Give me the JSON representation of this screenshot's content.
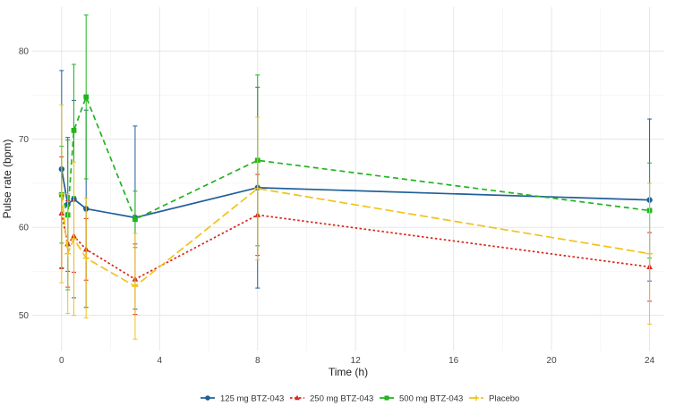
{
  "chart_data": {
    "type": "line",
    "title": "",
    "xlabel": "Time (h)",
    "ylabel": "Pulse rate (bpm)",
    "xlim": [
      -1.2,
      24.6
    ],
    "ylim": [
      46,
      85
    ],
    "xticks": [
      0,
      4,
      8,
      12,
      16,
      20,
      24
    ],
    "yticks": [
      50,
      60,
      70,
      80
    ],
    "grid": true,
    "legend_position": "bottom",
    "series": [
      {
        "name": "125 mg BTZ-043",
        "color": "#1f5f99",
        "dash": "solid",
        "marker": "circle",
        "x": [
          0,
          0.25,
          0.5,
          1,
          3,
          8,
          24
        ],
        "y": [
          66.6,
          62.6,
          63.2,
          62.1,
          61.1,
          64.5,
          63.1
        ],
        "err_low": [
          55.4,
          55.0,
          52.0,
          50.9,
          50.7,
          53.1,
          53.9
        ],
        "err_high": [
          77.8,
          70.2,
          74.4,
          73.3,
          71.5,
          75.9,
          72.3
        ]
      },
      {
        "name": "250 mg BTZ-043",
        "color": "#d62718",
        "dash": "dot",
        "marker": "triangle",
        "x": [
          0,
          0.25,
          0.5,
          1,
          3,
          8,
          24
        ],
        "y": [
          61.6,
          58.1,
          59.0,
          57.5,
          54.1,
          61.4,
          55.5
        ],
        "err_low": [
          55.3,
          53.2,
          54.9,
          54.0,
          50.1,
          56.8,
          51.6
        ],
        "err_high": [
          68.0,
          63.0,
          63.1,
          61.0,
          58.1,
          66.0,
          59.4
        ]
      },
      {
        "name": "500 mg BTZ-043",
        "color": "#22b41e",
        "dash": "dash",
        "marker": "square",
        "x": [
          0,
          0.25,
          0.5,
          1,
          3,
          8,
          24
        ],
        "y": [
          63.7,
          61.4,
          71.0,
          74.8,
          60.9,
          67.6,
          61.9
        ],
        "err_low": [
          58.2,
          52.9,
          63.5,
          65.5,
          57.7,
          57.9,
          56.5
        ],
        "err_high": [
          69.2,
          69.9,
          78.5,
          84.1,
          64.1,
          77.3,
          67.3
        ]
      },
      {
        "name": "Placebo",
        "color": "#f2c21b",
        "dash": "longdash",
        "marker": "plus",
        "x": [
          0,
          0.25,
          0.5,
          1,
          3,
          8,
          24
        ],
        "y": [
          63.8,
          57.0,
          58.7,
          56.5,
          53.3,
          64.4,
          57.0
        ],
        "err_low": [
          53.7,
          50.2,
          50.0,
          49.7,
          47.3,
          56.3,
          49.0
        ],
        "err_high": [
          73.9,
          63.8,
          67.4,
          63.3,
          59.3,
          72.5,
          65.0
        ]
      }
    ]
  }
}
